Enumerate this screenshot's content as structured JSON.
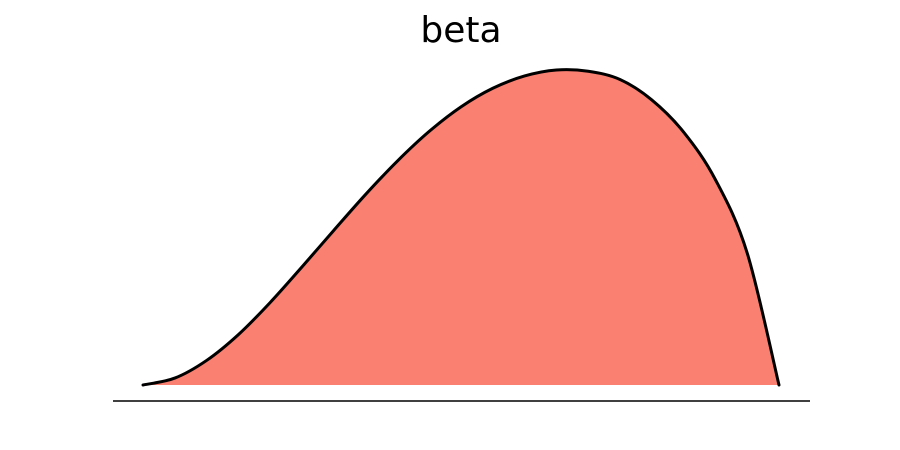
{
  "chart_data": {
    "type": "area",
    "title": "beta",
    "xlabel": "",
    "ylabel": "",
    "distribution": "beta",
    "xlim": [
      0,
      1
    ],
    "ylim": [
      0,
      1
    ],
    "grid": false,
    "axes_visible": false,
    "fill_color": "#fa8072",
    "line_color": "#000000",
    "baseline_color": "#000000",
    "series": [
      {
        "x": [
          0.0,
          0.05,
          0.1,
          0.15,
          0.2,
          0.25,
          0.3,
          0.35,
          0.4,
          0.45,
          0.5,
          0.55,
          0.6,
          0.65,
          0.7,
          0.75,
          0.8,
          0.85,
          0.9,
          0.95,
          1.0
        ],
        "values": [
          0.0,
          0.022,
          0.078,
          0.16,
          0.262,
          0.375,
          0.491,
          0.605,
          0.711,
          0.805,
          0.883,
          0.942,
          0.981,
          1.0,
          0.996,
          0.97,
          0.905,
          0.803,
          0.652,
          0.419,
          0.0
        ]
      }
    ]
  }
}
